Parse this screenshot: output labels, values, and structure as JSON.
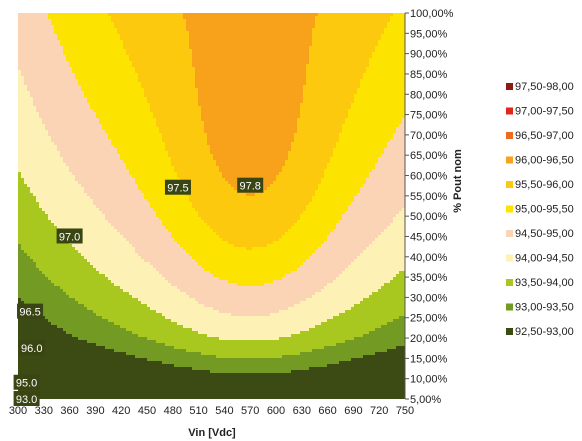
{
  "chart_data": {
    "type": "heatmap",
    "subtype": "filled-contour",
    "xlabel": "Vin [Vdc]",
    "ylabel": "% Pout nom",
    "x_ticks": [
      300,
      330,
      360,
      390,
      420,
      450,
      480,
      510,
      540,
      570,
      600,
      630,
      660,
      690,
      720,
      750
    ],
    "xlim": [
      300,
      750
    ],
    "y_ticks": [
      "5,00%",
      "10,00%",
      "15,00%",
      "20,00%",
      "25,00%",
      "30,00%",
      "35,00%",
      "40,00%",
      "45,00%",
      "50,00%",
      "55,00%",
      "60,00%",
      "65,00%",
      "70,00%",
      "75,00%",
      "80,00%",
      "85,00%",
      "90,00%",
      "95,00%",
      "100,00%"
    ],
    "ylim": [
      5,
      100
    ],
    "legend_position": "right",
    "levels": [
      {
        "label": "97,50-98,00",
        "min": 97.5,
        "max": 98.0,
        "color": "#8b1a12"
      },
      {
        "label": "97,00-97,50",
        "min": 97.0,
        "max": 97.5,
        "color": "#e3261c"
      },
      {
        "label": "96,50-97,00",
        "min": 96.5,
        "max": 97.0,
        "color": "#ee6a22"
      },
      {
        "label": "96,00-96,50",
        "min": 96.0,
        "max": 96.5,
        "color": "#f7a21a"
      },
      {
        "label": "95,50-96,00",
        "min": 95.5,
        "max": 96.0,
        "color": "#fcc90f"
      },
      {
        "label": "95,00-95,50",
        "min": 95.0,
        "max": 95.5,
        "color": "#fde300"
      },
      {
        "label": "94,50-95,00",
        "min": 94.5,
        "max": 95.0,
        "color": "#fbd3b5"
      },
      {
        "label": "94,00-94,50",
        "min": 94.0,
        "max": 94.5,
        "color": "#fdf1b6"
      },
      {
        "label": "93,50-94,00",
        "min": 93.5,
        "max": 94.0,
        "color": "#a8c820"
      },
      {
        "label": "93,00-93,50",
        "min": 93.0,
        "max": 93.5,
        "color": "#739a22"
      },
      {
        "label": "92,50-93,00",
        "min": 92.5,
        "max": 93.0,
        "color": "#3c4a14"
      }
    ],
    "contour_labels": [
      {
        "text": "97.8",
        "vin": 570,
        "pout": 57.5
      },
      {
        "text": "97.5",
        "vin": 486,
        "pout": 57
      },
      {
        "text": "97.0",
        "vin": 360,
        "pout": 45
      },
      {
        "text": "96.5",
        "vin": 314,
        "pout": 26.5
      },
      {
        "text": "96.0",
        "vin": 316,
        "pout": 17.5
      },
      {
        "text": "95.0",
        "vin": 310,
        "pout": 9
      },
      {
        "text": "93.0",
        "vin": 310,
        "pout": 5
      }
    ]
  }
}
